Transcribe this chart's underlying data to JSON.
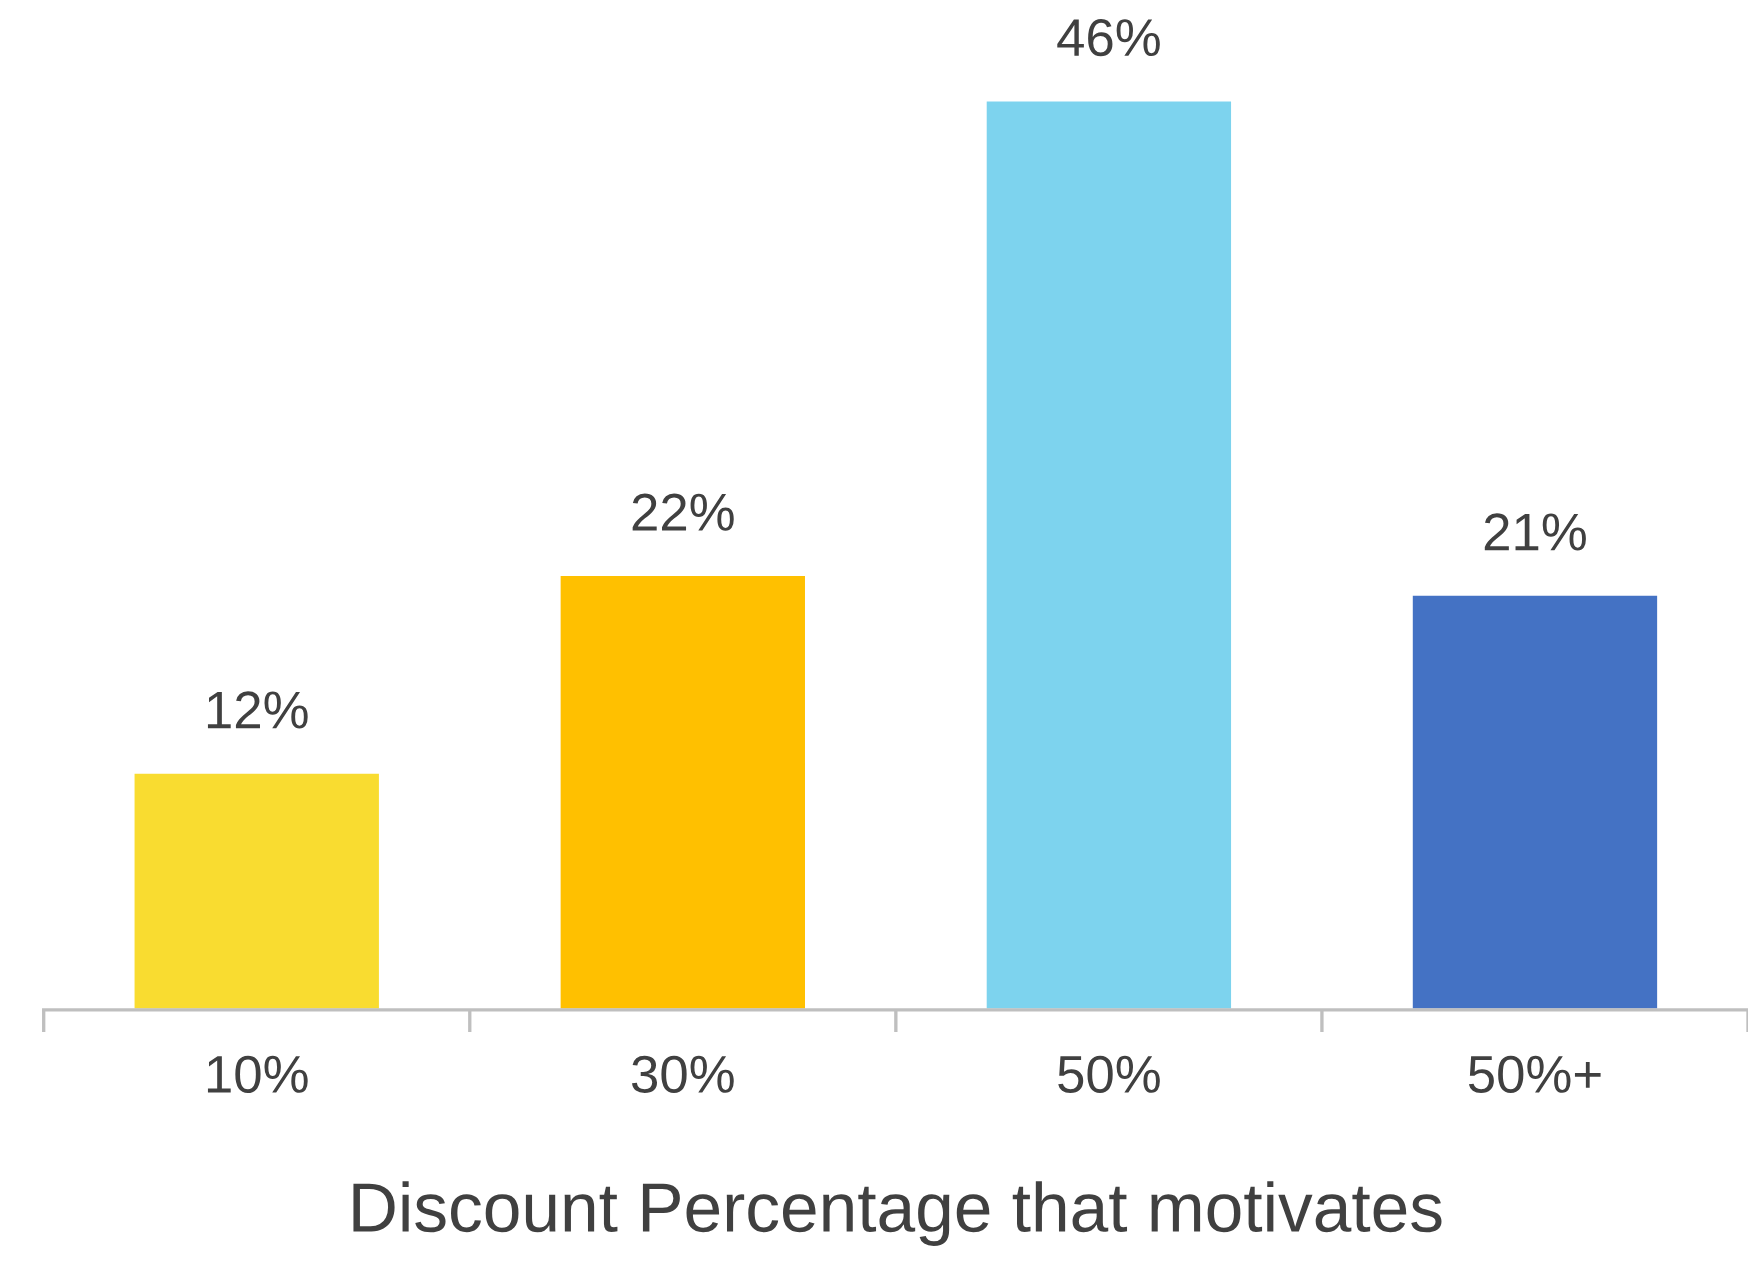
{
  "chart_data": {
    "type": "bar",
    "xlabel": "Discount Percentage that motivates",
    "categories": [
      "10%",
      "30%",
      "50%",
      "50%+"
    ],
    "values": [
      12,
      22,
      46,
      21
    ],
    "value_labels": [
      "12%",
      "22%",
      "46%",
      "21%"
    ],
    "colors": [
      "#f9dc30",
      "#ffc000",
      "#7dd3ee",
      "#4472c4"
    ],
    "grid": false,
    "legend": false
  }
}
